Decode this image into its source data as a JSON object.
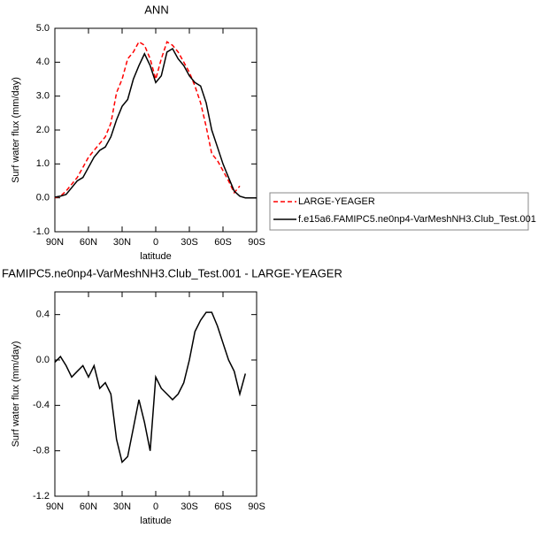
{
  "chart_data": [
    {
      "type": "line",
      "title": "ANN",
      "xlabel": "latitude",
      "ylabel": "Surf water flux (mm/day)",
      "x": [
        90,
        85,
        80,
        75,
        70,
        65,
        60,
        55,
        50,
        45,
        40,
        35,
        30,
        25,
        20,
        15,
        10,
        5,
        0,
        -5,
        -10,
        -15,
        -20,
        -25,
        -30,
        -35,
        -40,
        -45,
        -50,
        -55,
        -60,
        -65,
        -70,
        -75,
        -80,
        -85,
        -90
      ],
      "series": [
        {
          "name": "LARGE-YEAGER",
          "color": "#ff0000",
          "style": "dashed",
          "values": [
            0.0,
            0.05,
            0.2,
            0.4,
            0.6,
            0.9,
            1.2,
            1.4,
            1.6,
            1.8,
            2.2,
            3.1,
            3.5,
            4.1,
            4.3,
            4.6,
            4.5,
            4.1,
            3.5,
            4.1,
            4.6,
            4.5,
            4.3,
            4.0,
            3.7,
            3.3,
            2.8,
            2.1,
            1.3,
            1.1,
            0.8,
            0.5,
            0.15,
            0.35,
            null,
            null,
            null
          ]
        },
        {
          "name": "f.e15a6.FAMIPC5.ne0np4-VarMeshNH3.Club_Test.001",
          "color": "#000000",
          "style": "solid",
          "values": [
            0.02,
            0.05,
            0.1,
            0.3,
            0.5,
            0.6,
            0.9,
            1.2,
            1.4,
            1.5,
            1.8,
            2.3,
            2.7,
            2.9,
            3.5,
            3.9,
            4.25,
            3.9,
            3.4,
            3.6,
            4.3,
            4.4,
            4.1,
            3.9,
            3.6,
            3.4,
            3.3,
            2.8,
            2.0,
            1.5,
            1.0,
            0.6,
            0.2,
            0.05,
            0.0,
            0.0,
            0.0
          ]
        }
      ],
      "xlim": [
        90,
        -90
      ],
      "xticks": [
        {
          "value": 90,
          "label": "90N"
        },
        {
          "value": 60,
          "label": "60N"
        },
        {
          "value": 30,
          "label": "30N"
        },
        0,
        {
          "value": -30,
          "label": "30S"
        },
        {
          "value": -60,
          "label": "60S"
        },
        {
          "value": -90,
          "label": "90S"
        }
      ],
      "ylim": [
        -1,
        5
      ],
      "yticks": [
        {
          "value": -1,
          "label": "-1.0"
        },
        {
          "value": 0,
          "label": "0.0"
        },
        {
          "value": 1,
          "label": "1.0"
        },
        {
          "value": 2,
          "label": "2.0"
        },
        {
          "value": 3,
          "label": "3.0"
        },
        {
          "value": 4,
          "label": "4.0"
        },
        {
          "value": 5,
          "label": "5.0"
        }
      ],
      "grid": false,
      "legend": "right"
    },
    {
      "type": "line",
      "title": "FAMIPC5.ne0np4-VarMeshNH3.Club_Test.001 - LARGE-YEAGER",
      "xlabel": "latitude",
      "ylabel": "Surf water flux (mm/day)",
      "x": [
        90,
        85,
        80,
        75,
        70,
        65,
        60,
        55,
        50,
        45,
        40,
        35,
        30,
        25,
        20,
        15,
        10,
        5,
        0,
        -5,
        -10,
        -15,
        -20,
        -25,
        -30,
        -35,
        -40,
        -45,
        -50,
        -55,
        -60,
        -65,
        -70,
        -75,
        -80,
        -85,
        -90
      ],
      "series": [
        {
          "color": "#000000",
          "style": "solid",
          "values": [
            -0.02,
            0.03,
            -0.05,
            -0.15,
            -0.1,
            -0.05,
            -0.15,
            -0.05,
            -0.25,
            -0.2,
            -0.3,
            -0.7,
            -0.9,
            -0.85,
            -0.6,
            -0.35,
            -0.55,
            -0.8,
            -0.15,
            -0.25,
            -0.3,
            -0.35,
            -0.3,
            -0.2,
            0.0,
            0.25,
            0.35,
            0.42,
            0.42,
            0.3,
            0.15,
            0.0,
            -0.1,
            -0.3,
            -0.12,
            null,
            null
          ]
        }
      ],
      "xlim": [
        90,
        -90
      ],
      "xticks": [
        {
          "value": 90,
          "label": "90N"
        },
        {
          "value": 60,
          "label": "60N"
        },
        {
          "value": 30,
          "label": "30N"
        },
        0,
        {
          "value": -30,
          "label": "30S"
        },
        {
          "value": -60,
          "label": "60S"
        },
        {
          "value": -90,
          "label": "90S"
        }
      ],
      "ylim": [
        -1.2,
        0.6
      ],
      "yticks": [
        -1.2,
        -0.8,
        -0.4,
        {
          "value": 0,
          "label": "0.0"
        },
        0.4
      ],
      "grid": false
    }
  ]
}
